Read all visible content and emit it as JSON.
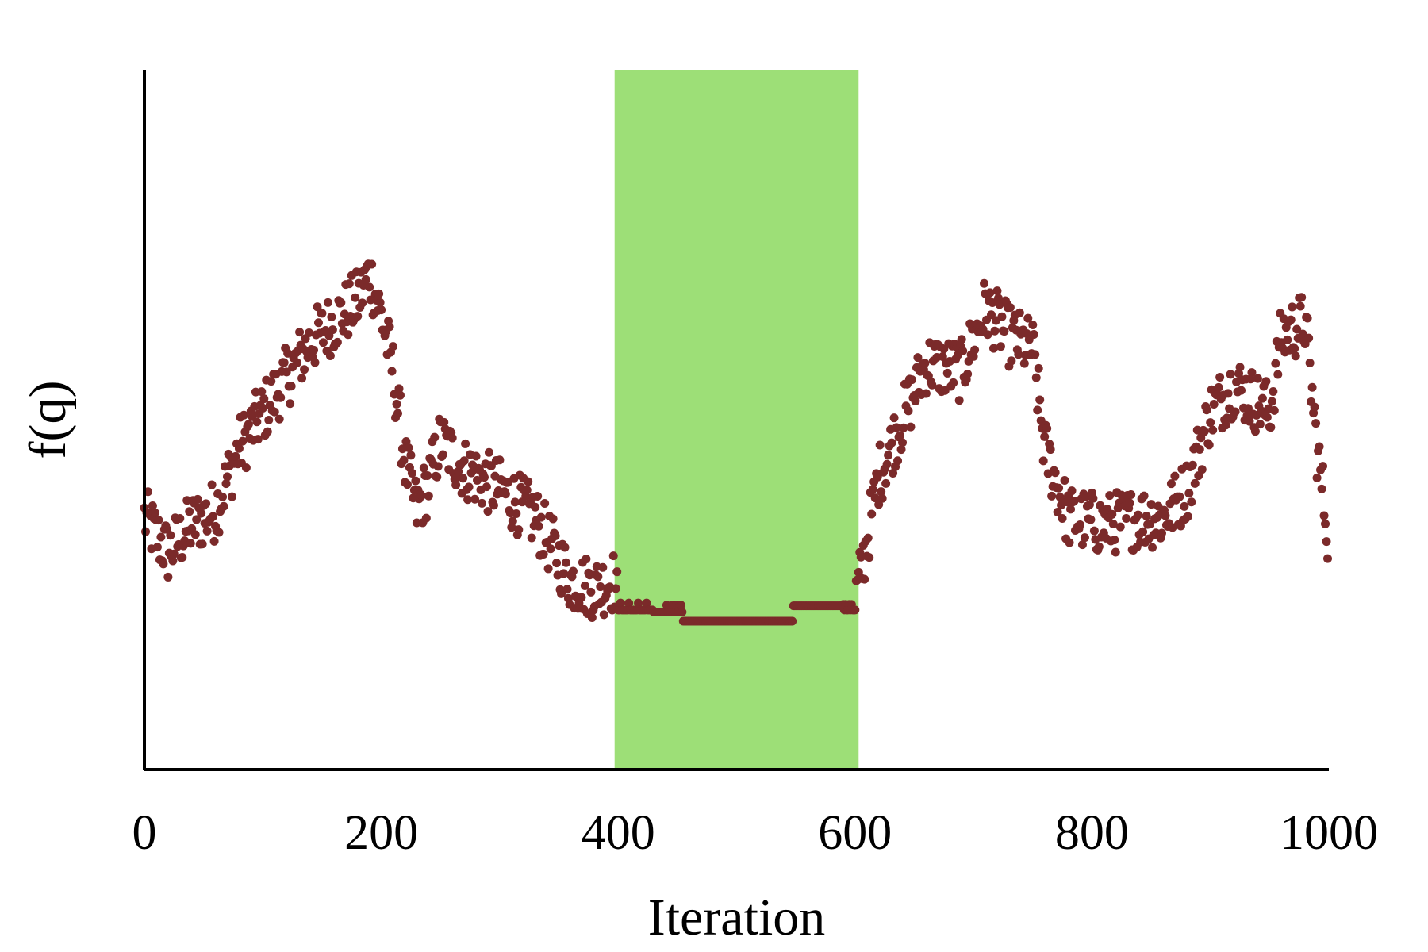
{
  "chart_data": {
    "type": "scatter",
    "title": "",
    "xlabel": "Iteration",
    "ylabel": "f(q)",
    "xlim": [
      0,
      1000
    ],
    "ylim": [
      0,
      1
    ],
    "x_ticks": [
      0,
      200,
      400,
      600,
      800,
      1000
    ],
    "x_tick_labels": [
      "0",
      "200",
      "400",
      "600",
      "800",
      "1000"
    ],
    "y_ticks_shown": false,
    "grid": false,
    "legend": "none",
    "highlight_band": {
      "x_start": 397,
      "x_end": 603,
      "color": "#9ddf77"
    },
    "marker_color": "#7b2a2a",
    "series": [
      {
        "values_description": "f(q) per iteration, 1000 points; estimated from a piecewise trend",
        "trend_knots": [
          [
            0,
            0.36
          ],
          [
            20,
            0.31
          ],
          [
            40,
            0.35
          ],
          [
            60,
            0.37
          ],
          [
            80,
            0.46
          ],
          [
            100,
            0.51
          ],
          [
            120,
            0.56
          ],
          [
            140,
            0.61
          ],
          [
            160,
            0.64
          ],
          [
            180,
            0.67
          ],
          [
            190,
            0.71
          ],
          [
            200,
            0.65
          ],
          [
            210,
            0.57
          ],
          [
            220,
            0.44
          ],
          [
            230,
            0.37
          ],
          [
            240,
            0.41
          ],
          [
            250,
            0.47
          ],
          [
            270,
            0.43
          ],
          [
            300,
            0.4
          ],
          [
            330,
            0.36
          ],
          [
            360,
            0.27
          ],
          [
            380,
            0.26
          ],
          [
            397,
            0.27
          ],
          [
            400,
            0.23
          ],
          [
            420,
            0.23
          ],
          [
            450,
            0.21
          ],
          [
            500,
            0.21
          ],
          [
            550,
            0.23
          ],
          [
            600,
            0.24
          ],
          [
            605,
            0.28
          ],
          [
            620,
            0.42
          ],
          [
            640,
            0.5
          ],
          [
            660,
            0.58
          ],
          [
            690,
            0.57
          ],
          [
            710,
            0.66
          ],
          [
            730,
            0.62
          ],
          [
            750,
            0.6
          ],
          [
            760,
            0.46
          ],
          [
            780,
            0.36
          ],
          [
            810,
            0.35
          ],
          [
            840,
            0.36
          ],
          [
            860,
            0.36
          ],
          [
            880,
            0.4
          ],
          [
            900,
            0.51
          ],
          [
            920,
            0.55
          ],
          [
            950,
            0.51
          ],
          [
            960,
            0.62
          ],
          [
            980,
            0.64
          ],
          [
            990,
            0.46
          ],
          [
            1000,
            0.33
          ]
        ]
      }
    ]
  }
}
